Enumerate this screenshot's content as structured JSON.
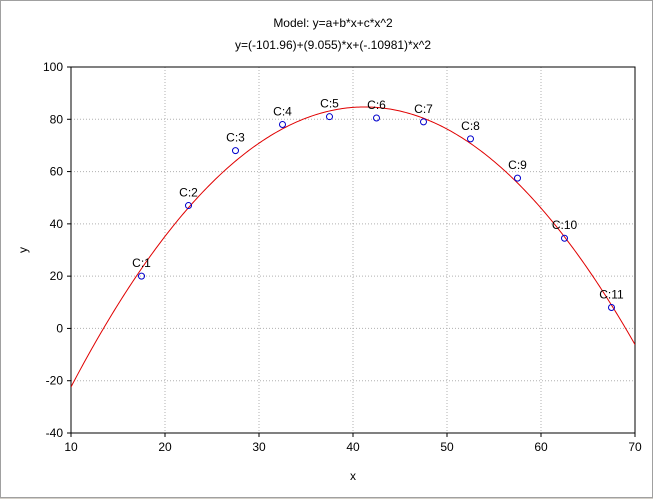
{
  "chart_data": {
    "type": "scatter",
    "title": "Model: y=a+b*x+c*x^2",
    "subtitle": "y=(-101.96)+(9.055)*x+(-.10981)*x^2",
    "xlabel": "x",
    "ylabel": "y",
    "xlim": [
      10,
      70
    ],
    "ylim": [
      -40,
      100
    ],
    "xticks": [
      10,
      20,
      30,
      40,
      50,
      60,
      70
    ],
    "yticks": [
      -40,
      -20,
      0,
      20,
      40,
      60,
      80,
      100
    ],
    "grid": true,
    "fit": {
      "a": -101.96,
      "b": 9.055,
      "c": -0.10981,
      "color": "#e00000"
    },
    "marker_color": "#0000cc",
    "points": [
      {
        "label": "C:1",
        "x": 17.5,
        "y": 20
      },
      {
        "label": "C:2",
        "x": 22.5,
        "y": 47
      },
      {
        "label": "C:3",
        "x": 27.5,
        "y": 68
      },
      {
        "label": "C:4",
        "x": 32.5,
        "y": 78
      },
      {
        "label": "C:5",
        "x": 37.5,
        "y": 81
      },
      {
        "label": "C:6",
        "x": 42.5,
        "y": 80.5
      },
      {
        "label": "C:7",
        "x": 47.5,
        "y": 79
      },
      {
        "label": "C:8",
        "x": 52.5,
        "y": 72.5
      },
      {
        "label": "C:9",
        "x": 57.5,
        "y": 57.5
      },
      {
        "label": "C:10",
        "x": 62.5,
        "y": 34.5
      },
      {
        "label": "C:11",
        "x": 67.5,
        "y": 8
      }
    ]
  }
}
